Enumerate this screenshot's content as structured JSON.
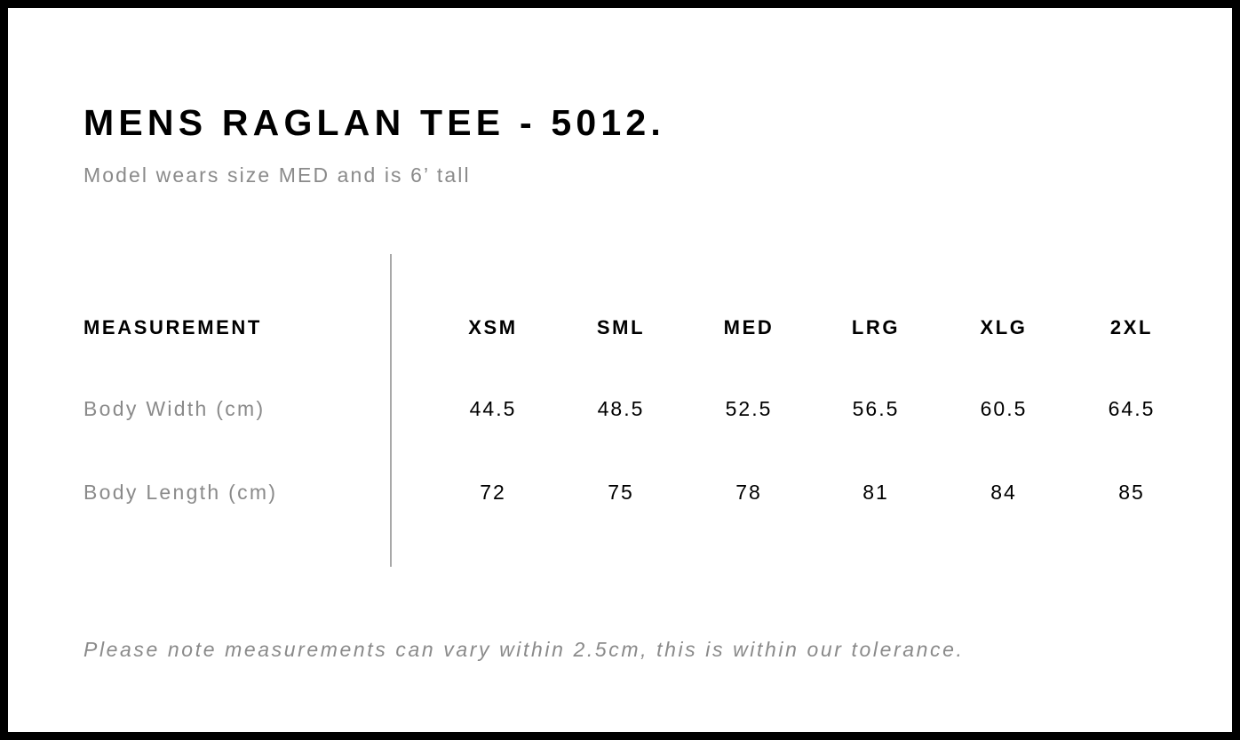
{
  "title": "MENS RAGLAN TEE - 5012.",
  "subtitle": "Model wears size MED and is 6’ tall",
  "table": {
    "header_label": "MEASUREMENT",
    "sizes": [
      "XSM",
      "SML",
      "MED",
      "LRG",
      "XLG",
      "2XL"
    ],
    "rows": [
      {
        "label": "Body Width (cm)",
        "values": [
          "44.5",
          "48.5",
          "52.5",
          "56.5",
          "60.5",
          "64.5"
        ]
      },
      {
        "label": "Body Length (cm)",
        "values": [
          "72",
          "75",
          "78",
          "81",
          "84",
          "85"
        ]
      }
    ]
  },
  "note": "Please note measurements can vary within 2.5cm, this is within our tolerance."
}
